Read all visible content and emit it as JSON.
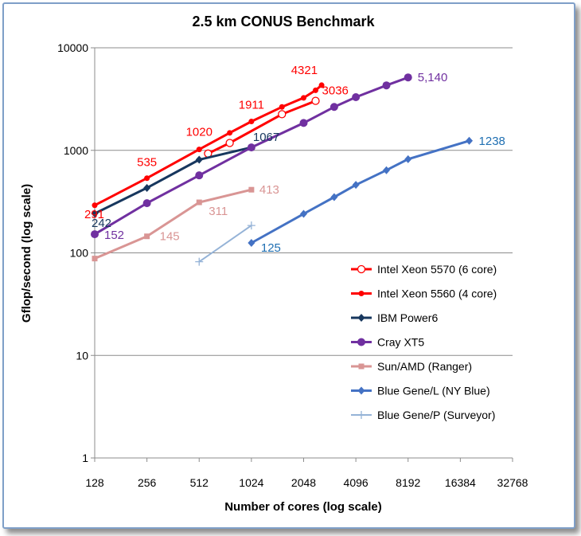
{
  "chart_data": {
    "type": "line",
    "title": "2.5 km CONUS Benchmark",
    "xlabel": "Number of cores (log scale)",
    "ylabel": "Gflop/second (log scale)",
    "x_scale": "log2",
    "y_scale": "log10",
    "xlim": [
      128,
      32768
    ],
    "ylim": [
      1,
      10000
    ],
    "x_ticks": [
      128,
      256,
      512,
      1024,
      2048,
      4096,
      8192,
      16384,
      32768
    ],
    "x_tick_labels": [
      "128",
      "256",
      "512",
      "1024",
      "2048",
      "4096",
      "8192",
      "16384",
      "32768"
    ],
    "y_ticks": [
      1,
      10,
      100,
      1000,
      10000
    ],
    "y_tick_labels": [
      "1",
      "10",
      "100",
      "1000",
      "10000"
    ],
    "grid": "horizontal",
    "legend_position": "bottom-right",
    "series": [
      {
        "name": "Intel Xeon 5570  (6 core)",
        "color": "#ff0000",
        "marker": "open-circle",
        "points": [
          [
            576,
            930
          ],
          [
            768,
            1180
          ],
          [
            1536,
            2250
          ],
          [
            2400,
            3036
          ]
        ],
        "labels": [
          {
            "index": 3,
            "text": "3036"
          }
        ]
      },
      {
        "name": "Intel Xeon 5560 (4 core)",
        "color": "#ff0000",
        "marker": "dot",
        "points": [
          [
            128,
            291
          ],
          [
            256,
            535
          ],
          [
            512,
            1020
          ],
          [
            768,
            1480
          ],
          [
            1024,
            1911
          ],
          [
            1536,
            2650
          ],
          [
            2048,
            3250
          ],
          [
            2400,
            3850
          ],
          [
            2600,
            4321
          ]
        ],
        "labels": [
          {
            "index": 0,
            "text": "291"
          },
          {
            "index": 1,
            "text": "535"
          },
          {
            "index": 2,
            "text": "1020"
          },
          {
            "index": 4,
            "text": "1911"
          },
          {
            "index": 8,
            "text": "4321"
          }
        ]
      },
      {
        "name": "IBM Power6",
        "color": "#17375e",
        "marker": "diamond",
        "points": [
          [
            128,
            242
          ],
          [
            256,
            430
          ],
          [
            512,
            810
          ],
          [
            1024,
            1067
          ]
        ],
        "labels": [
          {
            "index": 0,
            "text": "242"
          },
          {
            "index": 3,
            "text": "1067"
          }
        ]
      },
      {
        "name": "Cray XT5",
        "color": "#7030a0",
        "marker": "dot-large",
        "points": [
          [
            128,
            152
          ],
          [
            256,
            305
          ],
          [
            512,
            570
          ],
          [
            1024,
            1067
          ],
          [
            2048,
            1850
          ],
          [
            3072,
            2650
          ],
          [
            4096,
            3300
          ],
          [
            6144,
            4300
          ],
          [
            8192,
            5140
          ]
        ],
        "labels": [
          {
            "index": 0,
            "text": "152"
          },
          {
            "index": 8,
            "text": "5,140"
          }
        ]
      },
      {
        "name": "Sun/AMD (Ranger)",
        "color": "#d99594",
        "marker": "square",
        "points": [
          [
            128,
            88
          ],
          [
            256,
            145
          ],
          [
            512,
            311
          ],
          [
            1024,
            413
          ]
        ],
        "labels": [
          {
            "index": 1,
            "text": "145"
          },
          {
            "index": 2,
            "text": "311"
          },
          {
            "index": 3,
            "text": "413"
          }
        ]
      },
      {
        "name": "Blue Gene/L (NY Blue)",
        "color": "#4472c4",
        "marker": "diamond",
        "points": [
          [
            1024,
            125
          ],
          [
            2048,
            240
          ],
          [
            3072,
            350
          ],
          [
            4096,
            460
          ],
          [
            6144,
            640
          ],
          [
            8192,
            820
          ],
          [
            18432,
            1238
          ]
        ],
        "labels": [
          {
            "index": 0,
            "text": "125"
          },
          {
            "index": 6,
            "text": "1238"
          }
        ]
      },
      {
        "name": "Blue Gene/P (Surveyor)",
        "color": "#95b3d7",
        "marker": "plus",
        "points": [
          [
            512,
            82
          ],
          [
            1024,
            185
          ]
        ],
        "labels": []
      }
    ]
  }
}
